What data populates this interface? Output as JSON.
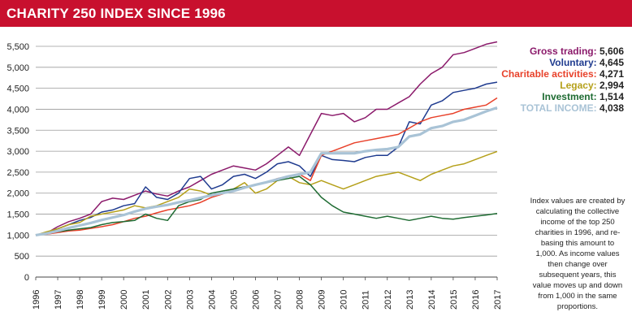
{
  "header": {
    "title": "CHARITY 250 INDEX SINCE 1996",
    "background": "#c8102e"
  },
  "note": "Index values are created by calculating the collective income of the top 250 charities in 1996, and re-basing this amount to 1,000. As income values then change over subsequent years, this value moves up and down from 1,000 in the same proportions.",
  "chart_data": {
    "type": "line",
    "title": "CHARITY 250 INDEX SINCE 1996",
    "xlabel": "",
    "ylabel": "",
    "x_ticks": [
      "1996",
      "1997",
      "1998",
      "1999",
      "2000",
      "2001",
      "2002",
      "2003",
      "2004",
      "2005",
      "2006",
      "2007",
      "2008",
      "2009",
      "2010",
      "2011",
      "2012",
      "2013",
      "2014",
      "2015",
      "2016",
      "2017"
    ],
    "y_ticks": [
      "0",
      "500",
      "1,000",
      "1,500",
      "2,000",
      "2,500",
      "3,000",
      "3,500",
      "4,000",
      "4,500",
      "5,000",
      "5,500"
    ],
    "xlim": [
      1996,
      2017
    ],
    "ylim": [
      0,
      5500
    ],
    "grid": "horizontal",
    "legend_position": "right",
    "series": [
      {
        "name": "Gross trading",
        "value_label": "5,606",
        "color": "#8b1a6b",
        "x": [
          1996,
          1996.5,
          1997,
          1997.5,
          1998,
          1998.5,
          1999,
          1999.5,
          2000,
          2000.5,
          2001,
          2001.5,
          2002,
          2002.5,
          2003,
          2003.5,
          2004,
          2004.5,
          2005,
          2005.5,
          2006,
          2006.5,
          2007,
          2007.5,
          2008,
          2008.5,
          2009,
          2009.5,
          2010,
          2010.5,
          2011,
          2011.5,
          2012,
          2012.5,
          2013,
          2013.5,
          2014,
          2014.5,
          2015,
          2015.5,
          2016,
          2016.5,
          2017
        ],
        "values": [
          1000,
          1050,
          1200,
          1320,
          1400,
          1500,
          1800,
          1880,
          1850,
          1950,
          2050,
          1980,
          1930,
          2050,
          2150,
          2300,
          2450,
          2550,
          2650,
          2600,
          2550,
          2700,
          2900,
          3100,
          2900,
          3400,
          3900,
          3850,
          3900,
          3700,
          3800,
          4000,
          4000,
          4150,
          4300,
          4600,
          4850,
          5000,
          5300,
          5350,
          5450,
          5550,
          5606
        ]
      },
      {
        "name": "Voluntary",
        "value_label": "4,645",
        "color": "#1f3b8f",
        "x": [
          1996,
          1996.5,
          1997,
          1997.5,
          1998,
          1998.5,
          1999,
          1999.5,
          2000,
          2000.5,
          2001,
          2001.5,
          2002,
          2002.5,
          2003,
          2003.5,
          2004,
          2004.5,
          2005,
          2005.5,
          2006,
          2006.5,
          2007,
          2007.5,
          2008,
          2008.5,
          2009,
          2009.5,
          2010,
          2010.5,
          2011,
          2011.5,
          2012,
          2012.5,
          2013,
          2013.5,
          2014,
          2014.5,
          2015,
          2015.5,
          2016,
          2016.5,
          2017
        ],
        "values": [
          1000,
          1050,
          1150,
          1250,
          1350,
          1420,
          1550,
          1600,
          1700,
          1750,
          2150,
          1900,
          1850,
          2000,
          2350,
          2400,
          2100,
          2200,
          2400,
          2450,
          2350,
          2500,
          2700,
          2750,
          2650,
          2400,
          2900,
          2800,
          2780,
          2750,
          2850,
          2900,
          2900,
          3100,
          3700,
          3650,
          4100,
          4200,
          4400,
          4450,
          4500,
          4600,
          4645
        ]
      },
      {
        "name": "Charitable activities",
        "value_label": "4,271",
        "color": "#e8412a",
        "x": [
          1996,
          1996.5,
          1997,
          1997.5,
          1998,
          1998.5,
          1999,
          1999.5,
          2000,
          2000.5,
          2001,
          2001.5,
          2002,
          2002.5,
          2003,
          2003.5,
          2004,
          2004.5,
          2005,
          2005.5,
          2006,
          2006.5,
          2007,
          2007.5,
          2008,
          2008.5,
          2009,
          2009.5,
          2010,
          2010.5,
          2011,
          2011.5,
          2012,
          2012.5,
          2013,
          2013.5,
          2014,
          2014.5,
          2015,
          2015.5,
          2016,
          2016.5,
          2017
        ],
        "values": [
          1000,
          1020,
          1060,
          1100,
          1120,
          1160,
          1200,
          1250,
          1320,
          1400,
          1450,
          1530,
          1600,
          1650,
          1700,
          1780,
          1900,
          1980,
          2100,
          2150,
          2200,
          2250,
          2350,
          2400,
          2450,
          2300,
          2900,
          3000,
          3100,
          3200,
          3250,
          3300,
          3350,
          3400,
          3550,
          3700,
          3800,
          3850,
          3900,
          4000,
          4050,
          4100,
          4271
        ]
      },
      {
        "name": "Legacy",
        "value_label": "2,994",
        "color": "#b5a01a",
        "x": [
          1996,
          1996.5,
          1997,
          1997.5,
          1998,
          1998.5,
          1999,
          1999.5,
          2000,
          2000.5,
          2001,
          2001.5,
          2002,
          2002.5,
          2003,
          2003.5,
          2004,
          2004.5,
          2005,
          2005.5,
          2006,
          2006.5,
          2007,
          2007.5,
          2008,
          2008.5,
          2009,
          2009.5,
          2010,
          2010.5,
          2011,
          2011.5,
          2012,
          2012.5,
          2013,
          2013.5,
          2014,
          2014.5,
          2015,
          2015.5,
          2016,
          2016.5,
          2017
        ],
        "values": [
          1000,
          1080,
          1150,
          1250,
          1300,
          1450,
          1500,
          1550,
          1600,
          1700,
          1650,
          1700,
          1800,
          1900,
          2100,
          2050,
          1950,
          2000,
          2100,
          2250,
          2000,
          2100,
          2300,
          2400,
          2250,
          2200,
          2300,
          2200,
          2100,
          2200,
          2300,
          2400,
          2450,
          2500,
          2400,
          2300,
          2450,
          2550,
          2650,
          2700,
          2800,
          2900,
          2994
        ]
      },
      {
        "name": "Investment",
        "value_label": "1,514",
        "color": "#1e6b32",
        "x": [
          1996,
          1996.5,
          1997,
          1997.5,
          1998,
          1998.5,
          1999,
          1999.5,
          2000,
          2000.5,
          2001,
          2001.5,
          2002,
          2002.5,
          2003,
          2003.5,
          2004,
          2004.5,
          2005,
          2005.5,
          2006,
          2006.5,
          2007,
          2007.5,
          2008,
          2008.5,
          2009,
          2009.5,
          2010,
          2010.5,
          2011,
          2011.5,
          2012,
          2012.5,
          2013,
          2013.5,
          2014,
          2014.5,
          2015,
          2015.5,
          2016,
          2016.5,
          2017
        ],
        "values": [
          1000,
          1040,
          1080,
          1120,
          1150,
          1180,
          1250,
          1300,
          1320,
          1350,
          1500,
          1400,
          1350,
          1700,
          1800,
          1850,
          2000,
          2050,
          2100,
          2150,
          2200,
          2250,
          2300,
          2350,
          2400,
          2200,
          1900,
          1700,
          1550,
          1500,
          1450,
          1400,
          1450,
          1400,
          1350,
          1400,
          1450,
          1400,
          1380,
          1420,
          1450,
          1480,
          1514
        ]
      },
      {
        "name": "TOTAL INCOME",
        "value_label": "4,038",
        "color": "#a9c3d6",
        "x": [
          1996,
          1996.5,
          1997,
          1997.5,
          1998,
          1998.5,
          1999,
          1999.5,
          2000,
          2000.5,
          2001,
          2001.5,
          2002,
          2002.5,
          2003,
          2003.5,
          2004,
          2004.5,
          2005,
          2005.5,
          2006,
          2006.5,
          2007,
          2007.5,
          2008,
          2008.5,
          2009,
          2009.5,
          2010,
          2010.5,
          2011,
          2011.5,
          2012,
          2012.5,
          2013,
          2013.5,
          2014,
          2014.5,
          2015,
          2015.5,
          2016,
          2016.5,
          2017
        ],
        "values": [
          1000,
          1040,
          1100,
          1170,
          1230,
          1290,
          1360,
          1420,
          1480,
          1560,
          1630,
          1680,
          1720,
          1780,
          1830,
          1890,
          1950,
          2000,
          2050,
          2130,
          2200,
          2260,
          2330,
          2400,
          2450,
          2500,
          2950,
          2950,
          2950,
          2950,
          3000,
          3030,
          3050,
          3100,
          3350,
          3400,
          3550,
          3600,
          3700,
          3750,
          3850,
          3950,
          4038
        ]
      }
    ]
  }
}
